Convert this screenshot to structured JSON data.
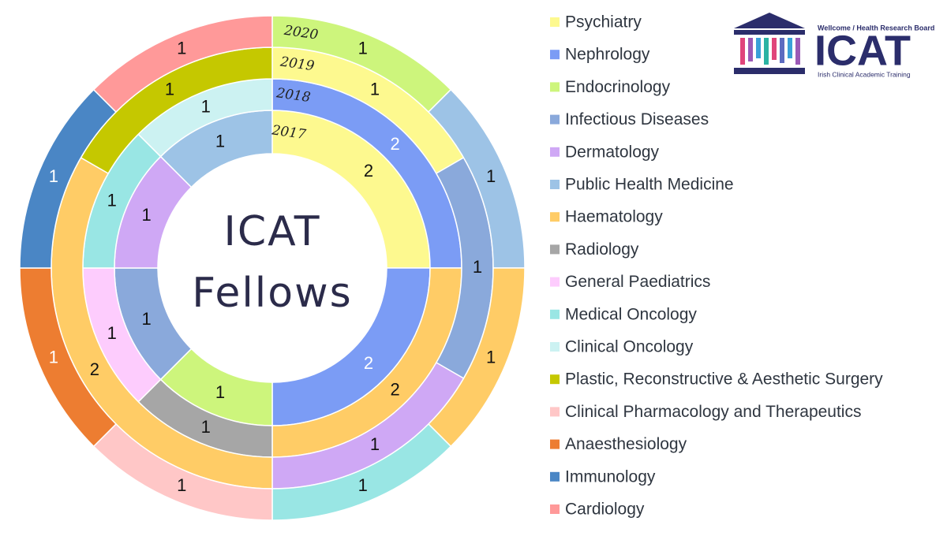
{
  "chart_data": {
    "type": "donut",
    "title": "ICAT Fellows",
    "categories": [
      "Psychiatry",
      "Nephrology",
      "Endocrinology",
      "Infectious Diseases",
      "Dermatology",
      "Public Health Medicine",
      "Haematology",
      "Radiology",
      "General Paediatrics",
      "Medical Oncology",
      "Clinical Oncology",
      "Plastic, Reconstructive & Aesthetic Surgery",
      "Clinical Pharmacology and Therapeutics",
      "Anaesthesiology",
      "Immunology",
      "Cardiology"
    ],
    "colors": [
      "#fdf98f",
      "#7b9cf5",
      "#cdf57c",
      "#8aa9db",
      "#cfa8f5",
      "#9dc3e6",
      "#ffcc66",
      "#a6a6a6",
      "#fdccfd",
      "#99e6e4",
      "#ccf2f2",
      "#c5c800",
      "#ffc7c7",
      "#ed7d31",
      "#4a86c5",
      "#ff9999"
    ],
    "series": [
      {
        "name": "2017",
        "values": [
          2,
          2,
          1,
          1,
          1,
          1,
          null,
          null,
          null,
          null,
          null,
          null,
          null,
          null,
          null,
          null
        ]
      },
      {
        "name": "2018",
        "values": [
          null,
          2,
          null,
          null,
          null,
          null,
          2,
          1,
          1,
          1,
          1,
          null,
          null,
          null,
          null,
          null
        ]
      },
      {
        "name": "2019",
        "values": [
          1,
          null,
          null,
          1,
          1,
          null,
          2,
          null,
          null,
          null,
          null,
          1,
          null,
          null,
          null,
          null
        ]
      },
      {
        "name": "2020",
        "values": [
          null,
          null,
          1,
          null,
          null,
          1,
          1,
          null,
          null,
          1,
          null,
          null,
          1,
          1,
          1,
          1
        ]
      }
    ],
    "legend": "right"
  },
  "logo": {
    "tagline": "Wellcome / Health Research Board",
    "name": "ICAT",
    "subtitle": "Irish Clinical Academic Training"
  }
}
